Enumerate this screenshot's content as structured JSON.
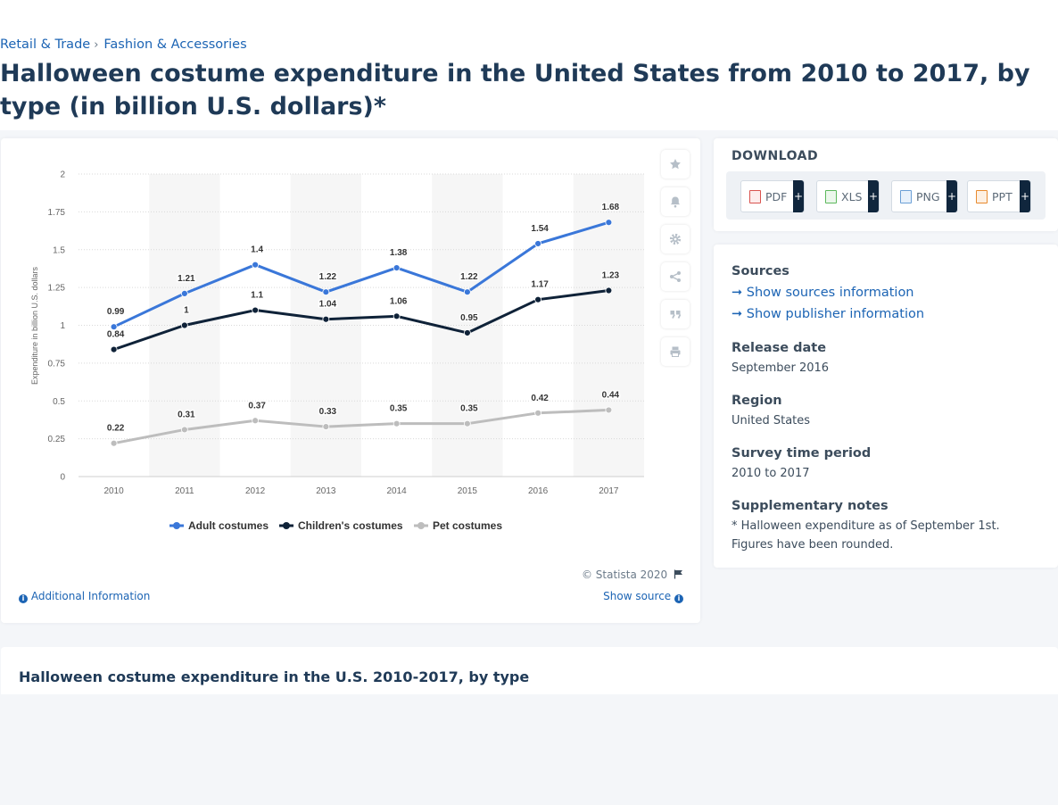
{
  "breadcrumb": {
    "item1": "Retail & Trade",
    "separator": "›",
    "item2": "Fashion & Accessories"
  },
  "title": "Halloween costume expenditure in the United States from 2010 to 2017, by type (in billion U.S. dollars)*",
  "chart_data": {
    "type": "line",
    "x": [
      "2010",
      "2011",
      "2012",
      "2013",
      "2014",
      "2015",
      "2016",
      "2017"
    ],
    "series": [
      {
        "name": "Adult costumes",
        "color": "#3a77d9",
        "values": [
          0.99,
          1.21,
          1.4,
          1.22,
          1.38,
          1.22,
          1.54,
          1.68
        ]
      },
      {
        "name": "Children's costumes",
        "color": "#0f2238",
        "values": [
          0.84,
          1,
          1.1,
          1.04,
          1.06,
          0.95,
          1.17,
          1.23
        ]
      },
      {
        "name": "Pet costumes",
        "color": "#bdbdbd",
        "values": [
          0.22,
          0.31,
          0.37,
          0.33,
          0.35,
          0.35,
          0.42,
          0.44
        ]
      }
    ],
    "yticks": [
      "0",
      "0.25",
      "0.5",
      "0.75",
      "1",
      "1.25",
      "1.5",
      "1.75",
      "2"
    ],
    "ylim": [
      0,
      2
    ],
    "ylabel": "Expenditure in billion U.S. dollars",
    "xlabel": "",
    "grid": true,
    "legend": "bottom-center"
  },
  "chart_footer": {
    "copyright": "© Statista 2020",
    "additional_info": "Additional Information",
    "show_source": "Show source"
  },
  "tools": {
    "favorite": "star-icon",
    "alert": "bell-icon",
    "settings": "gear-icon",
    "share": "share-icon",
    "cite": "quote-icon",
    "print": "print-icon"
  },
  "download": {
    "title": "DOWNLOAD",
    "pdf": "PDF",
    "xls": "XLS",
    "png": "PNG",
    "ppt": "PPT",
    "plus": "+"
  },
  "meta": {
    "sources_heading": "Sources",
    "show_sources": "Show sources information",
    "show_publisher": "Show publisher information",
    "release_heading": "Release date",
    "release_value": "September 2016",
    "region_heading": "Region",
    "region_value": "United States",
    "survey_heading": "Survey time period",
    "survey_value": "2010 to 2017",
    "supp_heading": "Supplementary notes",
    "supp_value": "* Halloween expenditure as of September 1st. Figures have been rounded."
  },
  "bottom": {
    "title": "Halloween costume expenditure in the U.S. 2010-2017, by type"
  },
  "colors": {
    "link": "#1c64b4",
    "navy": "#0f2238",
    "blue": "#3a77d9",
    "grey": "#bdbdbd"
  }
}
